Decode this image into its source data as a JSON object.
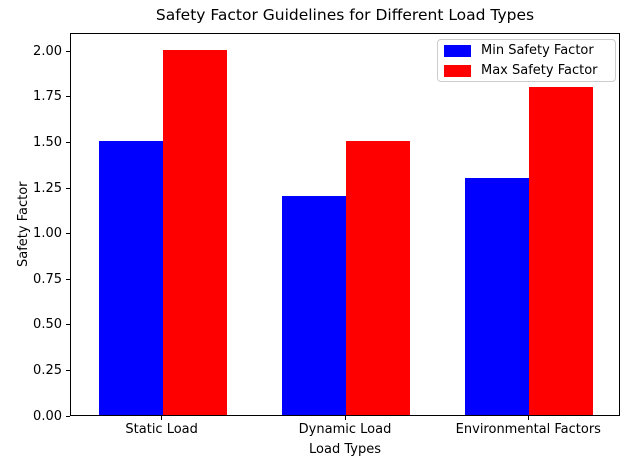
{
  "chart_data": {
    "type": "bar",
    "title": "Safety Factor Guidelines for Different Load Types",
    "xlabel": "Load Types",
    "ylabel": "Safety Factor",
    "categories": [
      "Static Load",
      "Dynamic Load",
      "Environmental Factors"
    ],
    "series": [
      {
        "name": "Min Safety Factor",
        "color": "#0000ff",
        "values": [
          1.5,
          1.2,
          1.3
        ]
      },
      {
        "name": "Max Safety Factor",
        "color": "#ff0000",
        "values": [
          2.0,
          1.5,
          1.8
        ]
      }
    ],
    "ylim": [
      0,
      2.1
    ],
    "yticks": [
      0.0,
      0.25,
      0.5,
      0.75,
      1.0,
      1.25,
      1.5,
      1.75,
      2.0
    ],
    "ytick_labels": [
      "0.00",
      "0.25",
      "0.50",
      "0.75",
      "1.00",
      "1.25",
      "1.50",
      "1.75",
      "2.00"
    ],
    "bar_width_fraction": 0.35,
    "grid": false,
    "legend_position": "upper right",
    "colors": {
      "axis": "#000000",
      "text": "#000000",
      "legend_border": "#cccccc",
      "background": "#ffffff"
    }
  }
}
